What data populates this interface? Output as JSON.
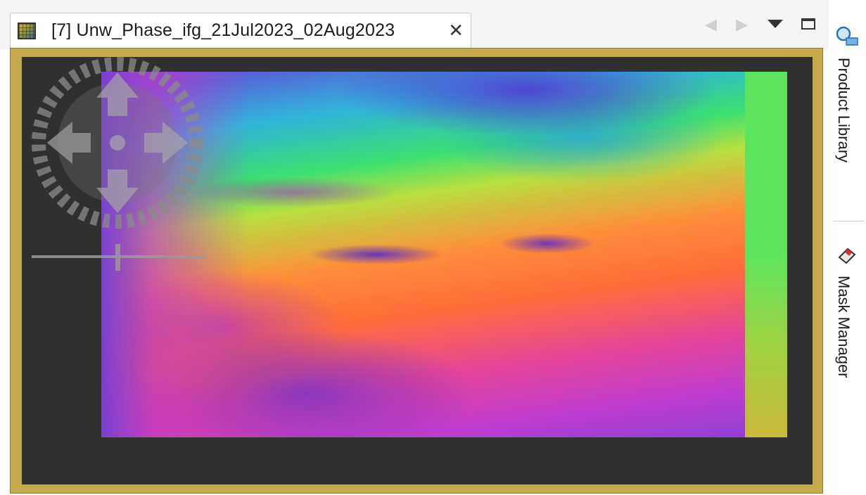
{
  "editor": {
    "tab_title": "[7] Unw_Phase_ifg_21Jul2023_02Aug2023",
    "close_glyph": "✕",
    "tab_icon": "raster-image-icon"
  },
  "toolbar": {
    "back_glyph": "◀",
    "forward_glyph": "▶",
    "menu_icon": "view-menu-icon",
    "maximize_icon": "maximize-icon"
  },
  "side_panel": {
    "items": [
      {
        "label": "Product Library",
        "icon": "product-library-icon"
      },
      {
        "label": "Mask Manager",
        "icon": "mask-manager-icon"
      }
    ]
  },
  "colors": {
    "frame_accent": "#c6a94a",
    "view_background": "#303030"
  }
}
